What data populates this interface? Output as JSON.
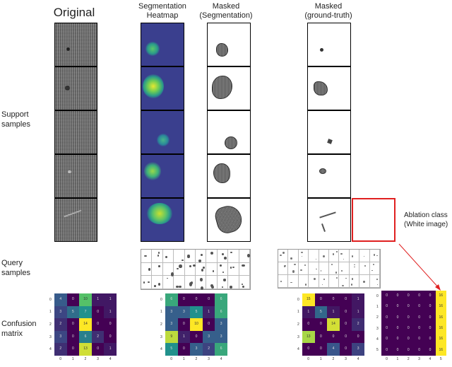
{
  "headers": {
    "original": "Original",
    "seg_heatmap": "Segmentation\nHeatmap",
    "masked_seg": "Masked\n(Segmentation)",
    "masked_gt": "Masked\n(ground-truth)"
  },
  "row_labels": {
    "support": "Support\nsamples",
    "query": "Query\nsamples",
    "confusion": "Confusion\nmatrix"
  },
  "ablation_label": "Ablation class\n(White image)",
  "colors": {
    "heat_bg": "#3a3f8e",
    "heat_hot": "#c8e030",
    "arrow": "#e02020",
    "cm_low": "#440154",
    "cm_mid": "#2a788e",
    "cm_high": "#fde725"
  },
  "confusion_matrices": [
    {
      "ticks": [
        "0",
        "1",
        "2",
        "3",
        "4"
      ],
      "values": [
        [
          4,
          0,
          10,
          1,
          1
        ],
        [
          3,
          5,
          7,
          0,
          1
        ],
        [
          2,
          0,
          14,
          0,
          0
        ],
        [
          3,
          0,
          6,
          2,
          0
        ],
        [
          2,
          0,
          13,
          0,
          1
        ]
      ]
    },
    {
      "ticks": [
        "0",
        "1",
        "2",
        "3",
        "4"
      ],
      "values": [
        [
          6,
          0,
          0,
          0,
          6
        ],
        [
          3,
          3,
          5,
          1,
          6
        ],
        [
          3,
          0,
          10,
          0,
          3
        ],
        [
          9,
          1,
          0,
          3,
          3
        ],
        [
          5,
          0,
          3,
          2,
          6
        ]
      ]
    },
    {
      "ticks": [
        "0",
        "1",
        "2",
        "3",
        "4"
      ],
      "values": [
        [
          15,
          0,
          0,
          0,
          1
        ],
        [
          1,
          5,
          1,
          0,
          1
        ],
        [
          0,
          0,
          14,
          0,
          2
        ],
        [
          13,
          0,
          0,
          0,
          0
        ],
        [
          0,
          0,
          4,
          0,
          3
        ]
      ]
    },
    {
      "ticks": [
        "0",
        "1",
        "2",
        "3",
        "4",
        "5"
      ],
      "values": [
        [
          0,
          0,
          0,
          0,
          0,
          16
        ],
        [
          0,
          0,
          0,
          0,
          0,
          16
        ],
        [
          0,
          0,
          0,
          0,
          0,
          16
        ],
        [
          0,
          0,
          0,
          0,
          0,
          16
        ],
        [
          0,
          0,
          0,
          0,
          0,
          16
        ],
        [
          0,
          0,
          0,
          0,
          0,
          16
        ]
      ]
    }
  ]
}
